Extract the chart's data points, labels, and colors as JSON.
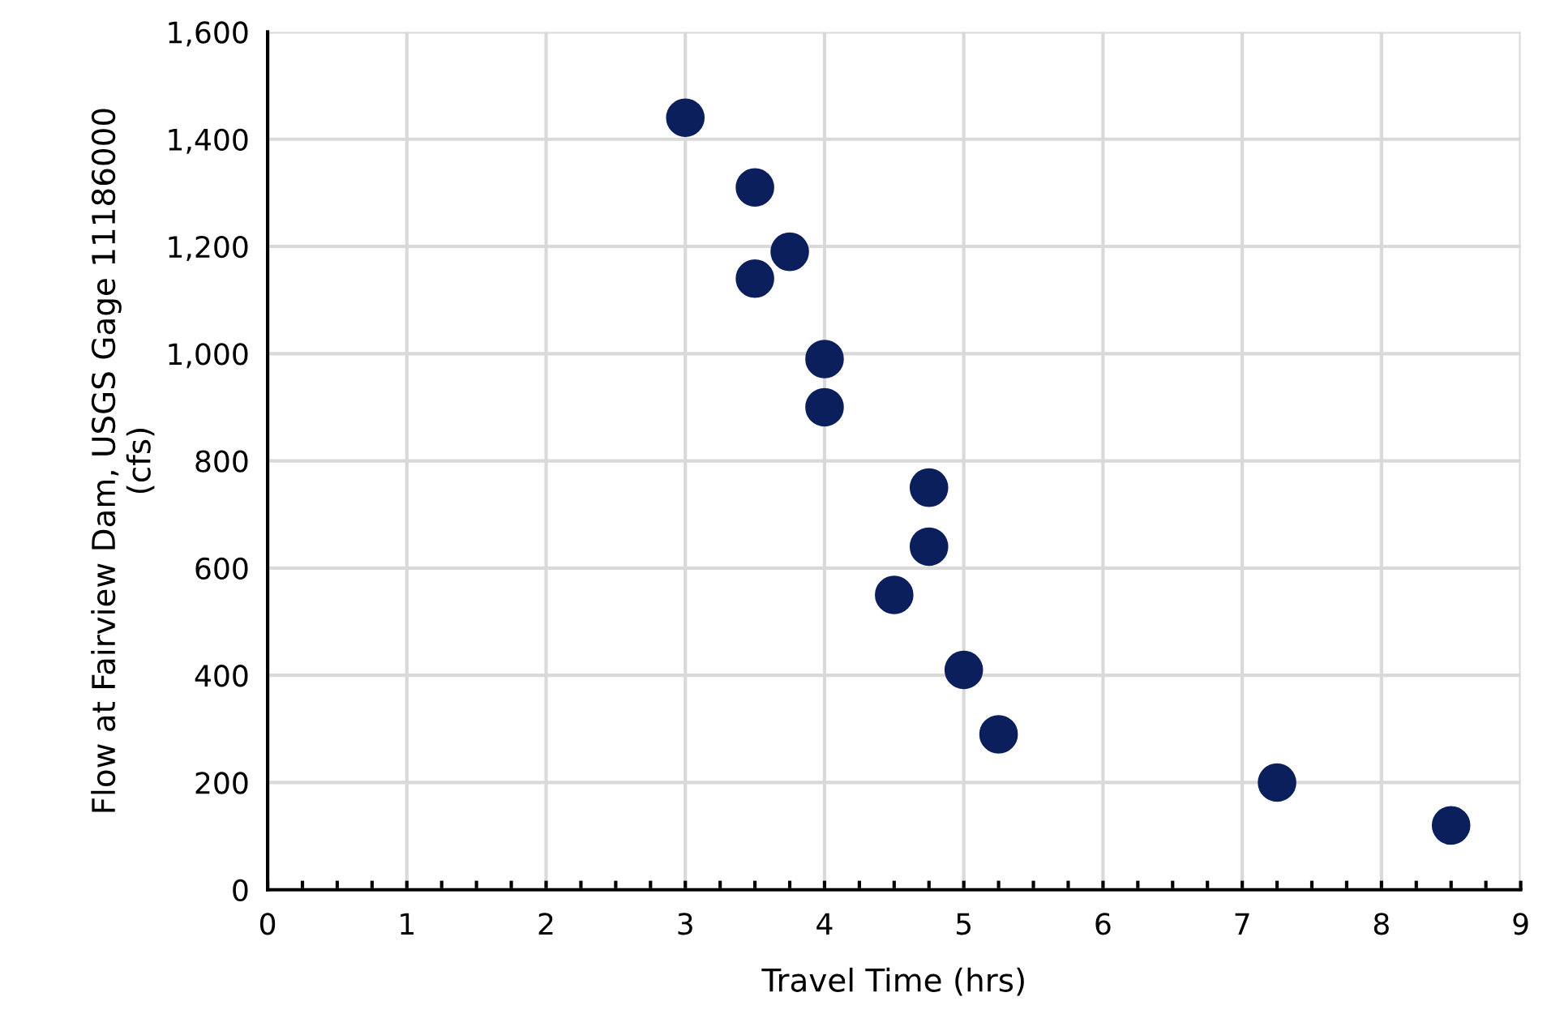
{
  "chart_data": {
    "type": "scatter",
    "xlabel": "Travel Time (hrs)",
    "ylabel": "Flow at Fairview Dam, USGS Gage 11186000\n(cfs)",
    "x": [
      3,
      3.5,
      3.5,
      3.75,
      4,
      4,
      4.75,
      4.75,
      4.5,
      5,
      5.25,
      7.25,
      8.5
    ],
    "series": [
      {
        "color": "#0b1f5c",
        "values": [
          1440,
          1310,
          1140,
          1190,
          990,
          900,
          750,
          640,
          550,
          410,
          290,
          200,
          120
        ]
      }
    ],
    "xlim": [
      0,
      9
    ],
    "xticks": [
      0,
      1,
      2,
      3,
      4,
      5,
      6,
      7,
      8,
      9
    ],
    "ylim": [
      0,
      1600
    ],
    "yticks": [
      {
        "value": 0,
        "label": "0"
      },
      {
        "value": 200,
        "label": "200"
      },
      {
        "value": 400,
        "label": "400"
      },
      {
        "value": 600,
        "label": "600"
      },
      {
        "value": 800,
        "label": "800"
      },
      {
        "value": 1000,
        "label": "1,000"
      },
      {
        "value": 1200,
        "label": "1,200"
      },
      {
        "value": 1400,
        "label": "1,400"
      },
      {
        "value": 1600,
        "label": "1,600"
      }
    ],
    "grid": true,
    "marker": "circle",
    "legend": false
  }
}
